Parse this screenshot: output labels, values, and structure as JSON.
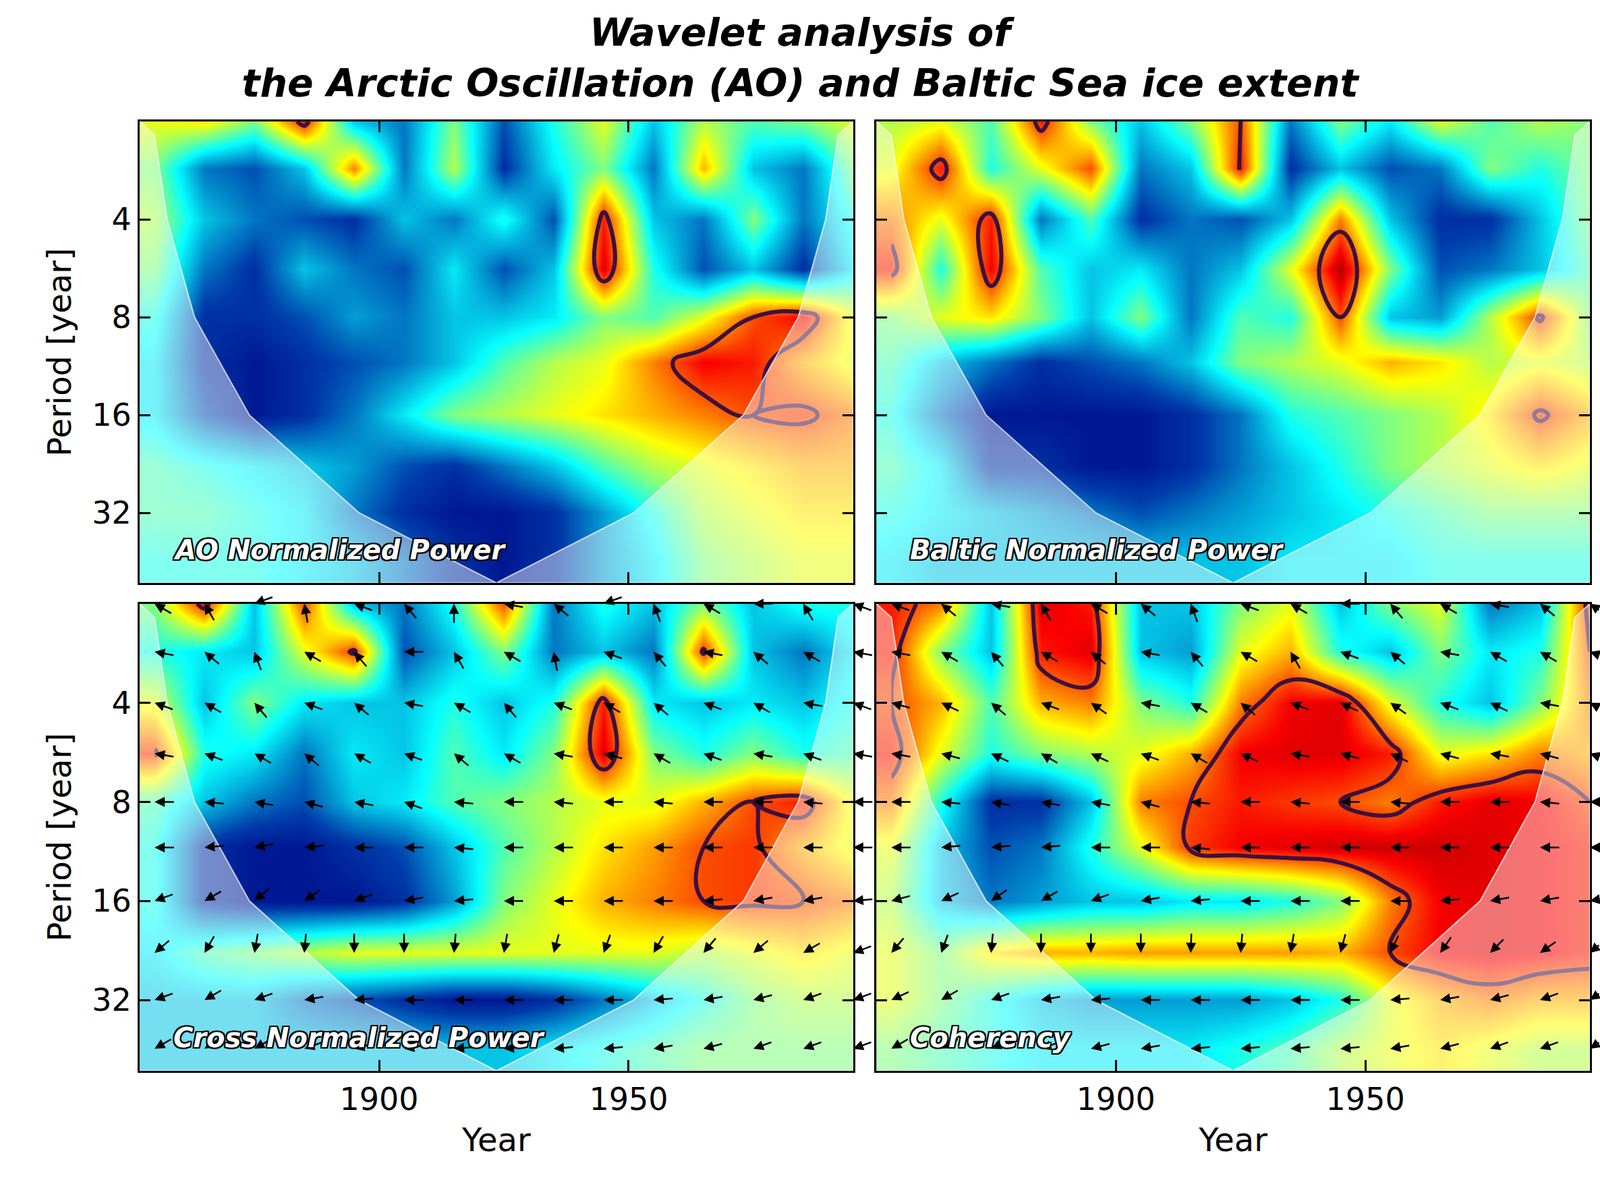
{
  "chart_data": {
    "type": "heatmap",
    "title": [
      "Wavelet analysis of",
      "the Arctic Oscillation (AO) and Baltic Sea ice extent"
    ],
    "x_label": "Year",
    "y_label": "Period [year]",
    "log": "y",
    "xlim": [
      1852,
      1995
    ],
    "ylim": [
      2,
      52.5
    ],
    "xticks": [
      1900,
      1950
    ],
    "yticks": [
      4,
      8,
      16,
      32
    ],
    "zlim": [
      0,
      1
    ],
    "contour_level": 0.8,
    "x": [
      1855,
      1865,
      1875,
      1885,
      1895,
      1905,
      1915,
      1925,
      1935,
      1945,
      1955,
      1965,
      1975,
      1985,
      1995
    ],
    "y": [
      2,
      2.8,
      4,
      5.7,
      8,
      11,
      16,
      23,
      32,
      45
    ],
    "coi": {
      "x": [
        1852,
        1855,
        1857.5,
        1863,
        1874,
        1896,
        1923.5,
        1951,
        1973,
        1984,
        1989.5,
        1992,
        1995
      ],
      "period": [
        2,
        2.2,
        4,
        8,
        16,
        32,
        52.5,
        32,
        16,
        8,
        4,
        2.2,
        2
      ]
    },
    "panels": [
      {
        "label": "AO Normalized Power",
        "tick_labels": "y",
        "z": [
          [
            0.6,
            0.65,
            0.5,
            0.85,
            0.3,
            0.2,
            0.5,
            0.15,
            0.4,
            0.6,
            0.3,
            0.55,
            0.45,
            0.5,
            0.6
          ],
          [
            0.5,
            0.2,
            0.15,
            0.3,
            0.75,
            0.2,
            0.55,
            0.1,
            0.35,
            0.5,
            0.2,
            0.7,
            0.3,
            0.2,
            0.5
          ],
          [
            0.55,
            0.3,
            0.2,
            0.15,
            0.1,
            0.3,
            0.2,
            0.4,
            0.15,
            0.85,
            0.3,
            0.2,
            0.5,
            0.2,
            0.4
          ],
          [
            0.5,
            0.2,
            0.1,
            0.3,
            0.2,
            0.15,
            0.35,
            0.15,
            0.3,
            0.9,
            0.4,
            0.15,
            0.3,
            0.1,
            0.35
          ],
          [
            0.4,
            0.1,
            0.1,
            0.15,
            0.25,
            0.2,
            0.3,
            0.3,
            0.35,
            0.5,
            0.45,
            0.6,
            0.8,
            0.88,
            0.6
          ],
          [
            0.35,
            0.1,
            0.05,
            0.1,
            0.15,
            0.2,
            0.3,
            0.45,
            0.55,
            0.6,
            0.75,
            0.88,
            0.85,
            0.7,
            0.6
          ],
          [
            0.35,
            0.15,
            0.05,
            0.1,
            0.2,
            0.35,
            0.5,
            0.55,
            0.6,
            0.65,
            0.7,
            0.75,
            0.8,
            0.82,
            0.75
          ],
          [
            0.45,
            0.4,
            0.35,
            0.3,
            0.25,
            0.15,
            0.1,
            0.2,
            0.3,
            0.45,
            0.55,
            0.6,
            0.65,
            0.7,
            0.7
          ],
          [
            0.45,
            0.45,
            0.4,
            0.35,
            0.2,
            0.1,
            0.05,
            0.05,
            0.1,
            0.25,
            0.4,
            0.55,
            0.6,
            0.65,
            0.65
          ],
          [
            0.4,
            0.4,
            0.4,
            0.35,
            0.3,
            0.2,
            0.1,
            0.05,
            0.1,
            0.25,
            0.35,
            0.5,
            0.55,
            0.6,
            0.6
          ]
        ]
      },
      {
        "label": "Baltic Normalized Power",
        "tick_labels": false,
        "z": [
          [
            0.55,
            0.6,
            0.45,
            0.85,
            0.5,
            0.3,
            0.5,
            0.8,
            0.2,
            0.5,
            0.35,
            0.6,
            0.45,
            0.55,
            0.5
          ],
          [
            0.6,
            0.85,
            0.4,
            0.6,
            0.8,
            0.2,
            0.3,
            0.85,
            0.1,
            0.3,
            0.15,
            0.2,
            0.5,
            0.4,
            0.5
          ],
          [
            0.75,
            0.6,
            0.85,
            0.2,
            0.45,
            0.1,
            0.2,
            0.15,
            0.3,
            0.75,
            0.3,
            0.1,
            0.1,
            0.3,
            0.5
          ],
          [
            0.85,
            0.4,
            0.88,
            0.45,
            0.3,
            0.35,
            0.2,
            0.3,
            0.6,
            0.95,
            0.5,
            0.15,
            0.2,
            0.3,
            0.45
          ],
          [
            0.5,
            0.6,
            0.65,
            0.5,
            0.3,
            0.5,
            0.2,
            0.45,
            0.4,
            0.8,
            0.3,
            0.25,
            0.55,
            0.82,
            0.5
          ],
          [
            0.45,
            0.3,
            0.2,
            0.1,
            0.15,
            0.2,
            0.3,
            0.5,
            0.55,
            0.6,
            0.7,
            0.65,
            0.55,
            0.6,
            0.55
          ],
          [
            0.4,
            0.2,
            0.05,
            0.05,
            0.05,
            0.05,
            0.1,
            0.2,
            0.4,
            0.45,
            0.5,
            0.55,
            0.65,
            0.82,
            0.7
          ],
          [
            0.45,
            0.35,
            0.1,
            0.1,
            0.05,
            0.05,
            0.1,
            0.2,
            0.3,
            0.4,
            0.5,
            0.55,
            0.6,
            0.65,
            0.6
          ],
          [
            0.4,
            0.35,
            0.3,
            0.25,
            0.2,
            0.15,
            0.2,
            0.25,
            0.3,
            0.35,
            0.4,
            0.45,
            0.5,
            0.5,
            0.5
          ],
          [
            0.35,
            0.3,
            0.3,
            0.3,
            0.3,
            0.3,
            0.3,
            0.3,
            0.35,
            0.35,
            0.35,
            0.4,
            0.4,
            0.4,
            0.4
          ]
        ]
      },
      {
        "label": "Cross Normalized Power",
        "tick_labels": true,
        "z": [
          [
            0.5,
            0.85,
            0.3,
            0.8,
            0.3,
            0.2,
            0.4,
            0.8,
            0.2,
            0.4,
            0.3,
            0.5,
            0.3,
            0.4,
            0.4
          ],
          [
            0.4,
            0.35,
            0.3,
            0.6,
            0.82,
            0.15,
            0.3,
            0.5,
            0.2,
            0.3,
            0.2,
            0.82,
            0.3,
            0.2,
            0.35
          ],
          [
            0.6,
            0.3,
            0.5,
            0.35,
            0.3,
            0.3,
            0.4,
            0.3,
            0.4,
            0.85,
            0.35,
            0.3,
            0.35,
            0.3,
            0.4
          ],
          [
            0.82,
            0.4,
            0.35,
            0.2,
            0.35,
            0.3,
            0.45,
            0.35,
            0.5,
            0.9,
            0.5,
            0.4,
            0.5,
            0.4,
            0.45
          ],
          [
            0.45,
            0.3,
            0.2,
            0.15,
            0.3,
            0.35,
            0.45,
            0.5,
            0.55,
            0.6,
            0.6,
            0.7,
            0.8,
            0.85,
            0.6
          ],
          [
            0.4,
            0.1,
            0.05,
            0.05,
            0.1,
            0.15,
            0.3,
            0.45,
            0.55,
            0.65,
            0.72,
            0.8,
            0.82,
            0.7,
            0.6
          ],
          [
            0.4,
            0.1,
            0.05,
            0.05,
            0.05,
            0.1,
            0.25,
            0.5,
            0.6,
            0.7,
            0.75,
            0.8,
            0.82,
            0.8,
            0.75
          ],
          [
            0.35,
            0.45,
            0.5,
            0.55,
            0.6,
            0.6,
            0.6,
            0.6,
            0.6,
            0.6,
            0.6,
            0.55,
            0.6,
            0.65,
            0.6
          ],
          [
            0.3,
            0.3,
            0.3,
            0.2,
            0.15,
            0.1,
            0.05,
            0.05,
            0.1,
            0.2,
            0.3,
            0.4,
            0.5,
            0.55,
            0.55
          ],
          [
            0.3,
            0.3,
            0.3,
            0.3,
            0.3,
            0.3,
            0.3,
            0.3,
            0.35,
            0.4,
            0.45,
            0.5,
            0.5,
            0.5,
            0.5
          ]
        ],
        "phase": [
          [
            150,
            120,
            200,
            100,
            160,
            130,
            90,
            170,
            140,
            200,
            110,
            150,
            180,
            120,
            160
          ],
          [
            170,
            140,
            110,
            150,
            130,
            180,
            120,
            150,
            100,
            160,
            130,
            170,
            140,
            150,
            170
          ],
          [
            160,
            150,
            130,
            160,
            140,
            170,
            150,
            130,
            160,
            150,
            140,
            160,
            150,
            170,
            160
          ],
          [
            170,
            160,
            150,
            140,
            150,
            160,
            140,
            150,
            170,
            165,
            150,
            160,
            170,
            160,
            170
          ],
          [
            180,
            175,
            170,
            165,
            170,
            160,
            175,
            180,
            175,
            180,
            175,
            180,
            180,
            175,
            180
          ],
          [
            180,
            185,
            190,
            185,
            180,
            180,
            175,
            180,
            180,
            180,
            180,
            180,
            180,
            180,
            180
          ],
          [
            200,
            210,
            220,
            215,
            200,
            190,
            185,
            180,
            180,
            180,
            180,
            185,
            190,
            190,
            185
          ],
          [
            220,
            240,
            260,
            265,
            270,
            270,
            265,
            260,
            255,
            250,
            240,
            230,
            220,
            210,
            200
          ],
          [
            200,
            210,
            200,
            190,
            185,
            180,
            180,
            180,
            180,
            180,
            185,
            190,
            195,
            200,
            200
          ],
          [
            210,
            215,
            210,
            200,
            195,
            190,
            185,
            185,
            185,
            185,
            190,
            195,
            200,
            200,
            200
          ]
        ]
      },
      {
        "label": "Coherency",
        "tick_labels": "x",
        "z": [
          [
            0.85,
            0.75,
            0.3,
            0.9,
            0.85,
            0.3,
            0.3,
            0.5,
            0.6,
            0.3,
            0.5,
            0.6,
            0.2,
            0.3,
            0.85
          ],
          [
            0.85,
            0.5,
            0.3,
            0.85,
            0.9,
            0.3,
            0.25,
            0.6,
            0.7,
            0.4,
            0.3,
            0.5,
            0.35,
            0.4,
            0.8
          ],
          [
            0.8,
            0.7,
            0.45,
            0.7,
            0.75,
            0.5,
            0.4,
            0.75,
            0.88,
            0.9,
            0.6,
            0.4,
            0.3,
            0.5,
            0.75
          ],
          [
            0.85,
            0.6,
            0.4,
            0.5,
            0.55,
            0.6,
            0.7,
            0.88,
            0.9,
            0.9,
            0.85,
            0.6,
            0.65,
            0.75,
            0.7
          ],
          [
            0.75,
            0.4,
            0.1,
            0.1,
            0.3,
            0.75,
            0.8,
            0.85,
            0.82,
            0.8,
            0.75,
            0.85,
            0.9,
            0.88,
            0.8
          ],
          [
            0.6,
            0.3,
            0.15,
            0.2,
            0.4,
            0.6,
            0.82,
            0.88,
            0.9,
            0.92,
            0.92,
            0.92,
            0.9,
            0.88,
            0.85
          ],
          [
            0.55,
            0.3,
            0.2,
            0.25,
            0.3,
            0.3,
            0.35,
            0.35,
            0.4,
            0.5,
            0.75,
            0.88,
            0.9,
            0.88,
            0.85
          ],
          [
            0.6,
            0.5,
            0.65,
            0.7,
            0.7,
            0.72,
            0.72,
            0.72,
            0.72,
            0.7,
            0.8,
            0.88,
            0.9,
            0.88,
            0.85
          ],
          [
            0.6,
            0.5,
            0.4,
            0.3,
            0.25,
            0.25,
            0.25,
            0.25,
            0.3,
            0.4,
            0.6,
            0.7,
            0.75,
            0.7,
            0.7
          ],
          [
            0.5,
            0.45,
            0.4,
            0.35,
            0.35,
            0.35,
            0.35,
            0.4,
            0.45,
            0.55,
            0.6,
            0.65,
            0.6,
            0.55,
            0.55
          ]
        ],
        "phase": [
          [
            160,
            140,
            170,
            120,
            150,
            140,
            110,
            160,
            150,
            180,
            130,
            150,
            170,
            140,
            160
          ],
          [
            170,
            150,
            130,
            150,
            140,
            170,
            130,
            150,
            120,
            160,
            140,
            170,
            150,
            150,
            170
          ],
          [
            165,
            155,
            140,
            160,
            145,
            170,
            150,
            140,
            160,
            155,
            145,
            160,
            155,
            170,
            165
          ],
          [
            170,
            165,
            155,
            150,
            155,
            160,
            150,
            155,
            170,
            165,
            155,
            165,
            170,
            165,
            170
          ],
          [
            180,
            175,
            170,
            170,
            170,
            165,
            175,
            180,
            175,
            180,
            175,
            180,
            180,
            175,
            180
          ],
          [
            180,
            185,
            185,
            185,
            180,
            180,
            175,
            180,
            180,
            180,
            180,
            180,
            180,
            180,
            180
          ],
          [
            195,
            205,
            215,
            210,
            200,
            190,
            185,
            180,
            180,
            180,
            180,
            185,
            190,
            190,
            185
          ],
          [
            230,
            250,
            265,
            270,
            270,
            270,
            268,
            265,
            260,
            255,
            245,
            235,
            225,
            215,
            205
          ],
          [
            205,
            210,
            200,
            190,
            185,
            180,
            180,
            180,
            180,
            180,
            185,
            190,
            195,
            200,
            200
          ],
          [
            210,
            210,
            205,
            200,
            195,
            190,
            185,
            185,
            185,
            185,
            190,
            195,
            200,
            200,
            200
          ]
        ]
      }
    ]
  }
}
